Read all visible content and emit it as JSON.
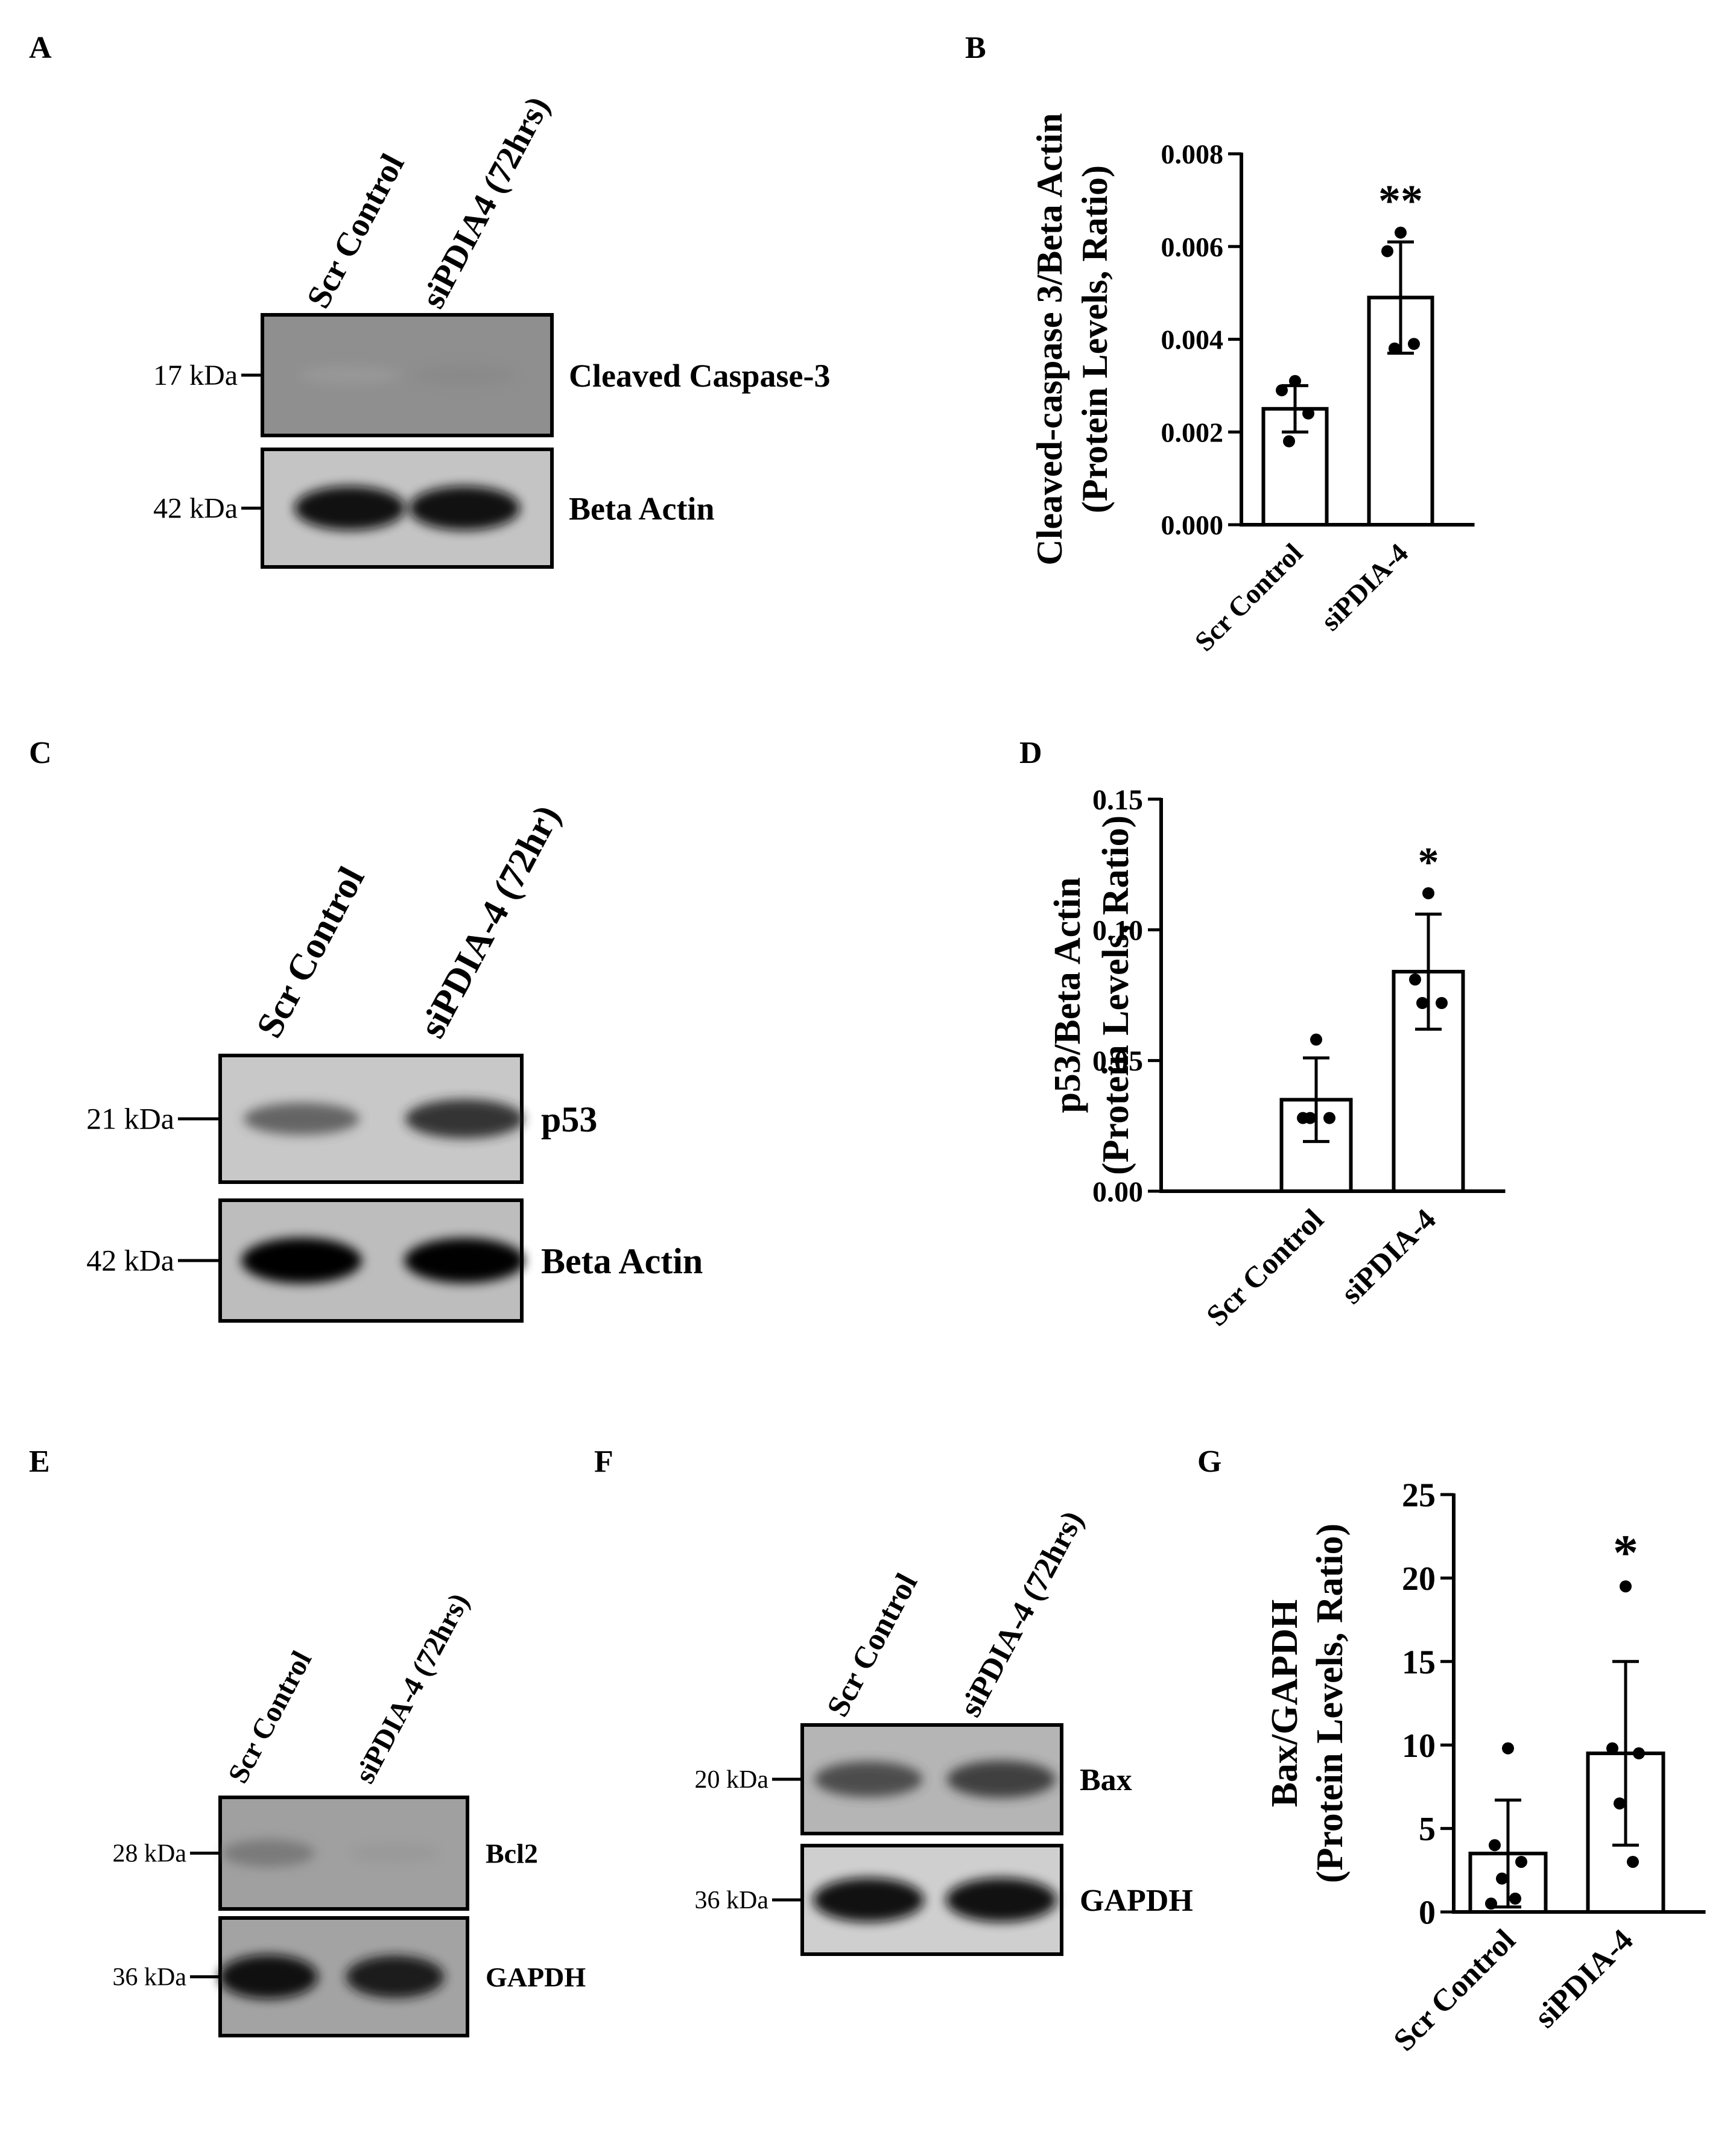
{
  "panels": {
    "A": {
      "letter": "A",
      "lanes": [
        "Scr Control",
        "siPDIA4 (72hrs)"
      ],
      "blots": [
        {
          "marker": "17 kDa",
          "protein": "Cleaved Caspase-3",
          "intensity": [
            0.22,
            0.32
          ],
          "bg": "#8f8f8f"
        },
        {
          "marker": "42 kDa",
          "protein": "Beta Actin",
          "intensity": [
            0.95,
            0.95
          ],
          "bg": "#c4c4c4"
        }
      ]
    },
    "B": {
      "letter": "B"
    },
    "C": {
      "letter": "C",
      "lanes": [
        "Scr Control",
        "siPDIA-4 (72hr)"
      ],
      "blots": [
        {
          "marker": "21 kDa",
          "protein": "p53",
          "intensity": [
            0.6,
            0.8
          ],
          "bg": "#c8c8c8"
        },
        {
          "marker": "42 kDa",
          "protein": "Beta Actin",
          "intensity": [
            1.0,
            0.98
          ],
          "bg": "#bdbdbd"
        }
      ]
    },
    "D": {
      "letter": "D"
    },
    "E": {
      "letter": "E",
      "lanes": [
        "Scr Control",
        "siPDIA-4 (72hrs)"
      ],
      "blots": [
        {
          "marker": "28 kDa",
          "protein": "Bcl2",
          "intensity": [
            0.45,
            0.25
          ],
          "bg": "#a0a0a0"
        },
        {
          "marker": "36 kDa",
          "protein": "GAPDH",
          "intensity": [
            0.95,
            0.9
          ],
          "bg": "#a3a3a3"
        }
      ]
    },
    "F": {
      "letter": "F",
      "lanes": [
        "Scr Control",
        "siPDIA-4  (72hrs)"
      ],
      "blots": [
        {
          "marker": "20 kDa",
          "protein": "Bax",
          "intensity": [
            0.7,
            0.75
          ],
          "bg": "#b5b5b5"
        },
        {
          "marker": "36 kDa",
          "protein": "GAPDH",
          "intensity": [
            0.95,
            0.95
          ],
          "bg": "#cfcfcf"
        }
      ]
    },
    "G": {
      "letter": "G"
    }
  },
  "chart_data": [
    {
      "panel": "B",
      "type": "bar",
      "categories": [
        "Scr Control",
        "siPDIA-4"
      ],
      "values": [
        0.0025,
        0.0049
      ],
      "errors": [
        0.0005,
        0.0012
      ],
      "points": [
        [
          0.0031,
          0.0029,
          0.0024,
          0.0018
        ],
        [
          0.0063,
          0.0059,
          0.0039,
          0.0038
        ]
      ],
      "significance": [
        "",
        "**"
      ],
      "ylabel": [
        "Cleaved-caspase 3/Beta Actin",
        "(Protein Levels, Ratio)"
      ],
      "ylim": [
        0,
        0.008
      ],
      "yticks": [
        0,
        0.002,
        0.004,
        0.006,
        0.008
      ],
      "yticklabels": [
        "0.000",
        "0.002",
        "0.004",
        "0.006",
        "0.008"
      ]
    },
    {
      "panel": "D",
      "type": "bar",
      "categories": [
        "Scr Control",
        "siPDIA-4"
      ],
      "values": [
        0.035,
        0.084
      ],
      "errors": [
        0.016,
        0.022
      ],
      "points": [
        [
          0.058,
          0.028,
          0.028,
          0.028
        ],
        [
          0.114,
          0.081,
          0.072,
          0.072
        ]
      ],
      "significance": [
        "",
        "*"
      ],
      "ylabel": [
        "p53/Beta Actin",
        "(Protein Levels, Ratio)"
      ],
      "ylim": [
        0,
        0.15
      ],
      "yticks": [
        0,
        0.05,
        0.1,
        0.15
      ],
      "yticklabels": [
        "0.00",
        "0.05",
        "0.10",
        "0.15"
      ]
    },
    {
      "panel": "G",
      "type": "bar",
      "categories": [
        "Scr Control",
        "siPDIA-4"
      ],
      "values": [
        3.5,
        9.5
      ],
      "errors": [
        3.2,
        5.5
      ],
      "points": [
        [
          9.8,
          4.0,
          3.0,
          2.0,
          0.8,
          0.5
        ],
        [
          19.5,
          9.8,
          9.5,
          6.5,
          3.0
        ]
      ],
      "significance": [
        "",
        "*"
      ],
      "ylabel": [
        "Bax/GAPDH",
        "(Protein Levels, Ratio)"
      ],
      "ylim": [
        0,
        25
      ],
      "yticks": [
        0,
        5,
        10,
        15,
        20,
        25
      ],
      "yticklabels": [
        "0",
        "5",
        "10",
        "15",
        "20",
        "25"
      ]
    }
  ]
}
